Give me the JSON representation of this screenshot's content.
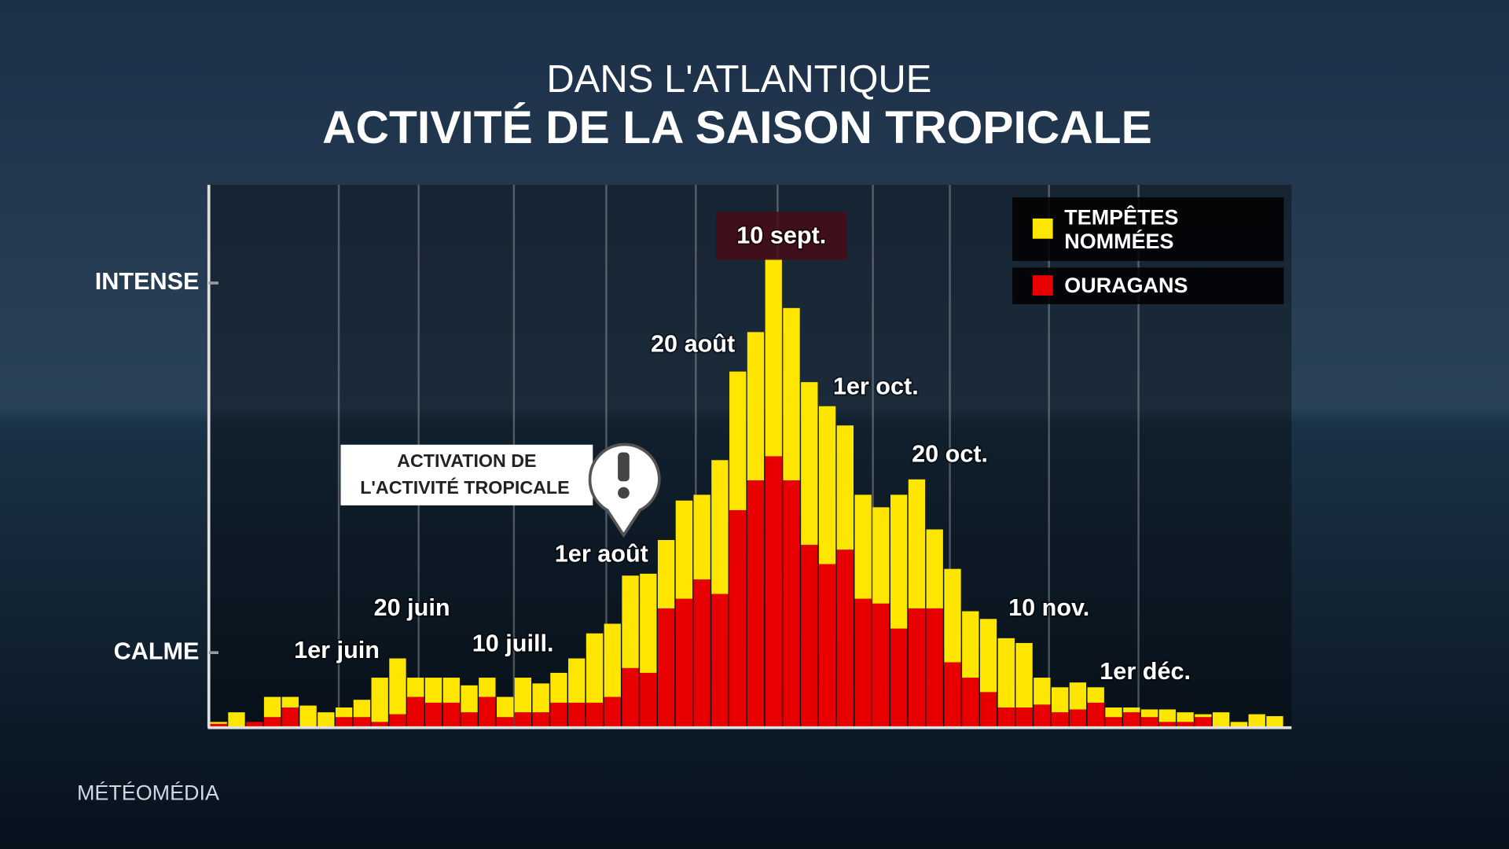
{
  "chart_data": {
    "type": "bar",
    "stacked": true,
    "title": "DANS L'ATLANTIQUE",
    "subtitle": "ACTIVITÉ DE LA SAISON TROPICALE",
    "annotation": [
      "ACTIVATION DE",
      "L'ACTIVITÉ TROPICALE"
    ],
    "brand": "MÉTÉOMÉDIA",
    "categories": [
      null,
      null,
      null,
      null,
      null,
      null,
      null,
      "1er juin",
      null,
      null,
      null,
      "20 juin",
      null,
      null,
      null,
      null,
      "10 juill.",
      null,
      null,
      null,
      null,
      "1er août",
      null,
      null,
      null,
      null,
      "20 août",
      null,
      null,
      null,
      null,
      "10 sept.",
      null,
      null,
      null,
      null,
      null,
      "1er oct.",
      null,
      null,
      null,
      "20 oct.",
      null,
      null,
      null,
      null,
      "10 nov.",
      null,
      null,
      null,
      null,
      null,
      "1er déc.",
      null,
      null,
      null,
      null,
      null,
      null,
      null
    ],
    "series": [
      {
        "name": "OURAGANS",
        "color": "#e80000",
        "values": [
          3,
          0,
          5,
          10,
          20,
          0,
          0,
          10,
          10,
          5,
          13,
          31,
          25,
          25,
          15,
          31,
          10,
          15,
          15,
          25,
          25,
          25,
          31,
          61,
          56,
          123,
          133,
          153,
          138,
          225,
          256,
          281,
          256,
          189,
          169,
          184,
          133,
          128,
          102,
          123,
          123,
          67,
          51,
          36,
          20,
          20,
          23,
          15,
          18,
          25,
          10,
          15,
          10,
          5,
          5,
          10,
          0,
          0,
          0,
          0
        ]
      },
      {
        "name": "TEMPÊTES NOMMÉES",
        "color": "#ffe600",
        "values": [
          2,
          15,
          0,
          21,
          11,
          22,
          15,
          10,
          18,
          46,
          58,
          20,
          26,
          26,
          28,
          20,
          21,
          36,
          30,
          31,
          46,
          72,
          76,
          96,
          103,
          71,
          102,
          88,
          139,
          144,
          154,
          205,
          179,
          169,
          164,
          129,
          108,
          100,
          139,
          134,
          82,
          97,
          69,
          76,
          72,
          67,
          28,
          26,
          28,
          16,
          10,
          5,
          8,
          13,
          10,
          3,
          15,
          5,
          13,
          11
        ]
      }
    ],
    "ylim": [
      0,
      563
    ],
    "yticks": [
      {
        "value": 77,
        "label": "CALME"
      },
      {
        "value": 461,
        "label": "INTENSE"
      }
    ],
    "legend": "upper right"
  }
}
